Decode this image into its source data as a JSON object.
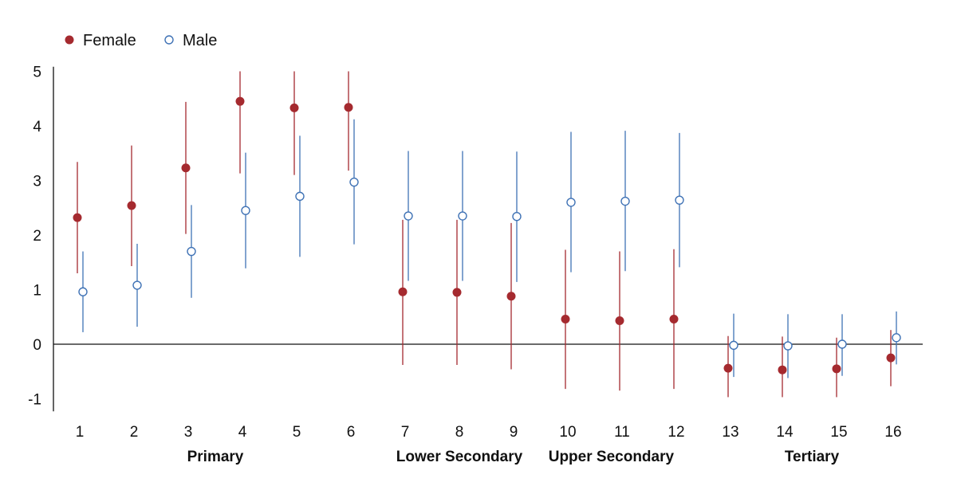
{
  "colors": {
    "female": "#a52a2f",
    "male": "#3f72b5"
  },
  "chart_data": {
    "type": "scatter",
    "subtype": "point-with-error-bars",
    "x": [
      1,
      2,
      3,
      4,
      5,
      6,
      7,
      8,
      9,
      10,
      11,
      12,
      13,
      14,
      15,
      16
    ],
    "x_tick_labels": [
      "1",
      "2",
      "3",
      "4",
      "5",
      "6",
      "7",
      "8",
      "9",
      "10",
      "11",
      "12",
      "13",
      "14",
      "15",
      "16"
    ],
    "y_tick_labels": [
      "-1",
      "0",
      "1",
      "2",
      "3",
      "4",
      "5"
    ],
    "ylim": [
      -1.2,
      5.2
    ],
    "grid": false,
    "legend": "top-left",
    "group_labels": [
      {
        "label": "Primary",
        "center": 3.5
      },
      {
        "label": "Lower Secondary",
        "center": 8
      },
      {
        "label": "Upper Secondary",
        "center": 10.8
      },
      {
        "label": "Tertiary",
        "center": 14.5
      }
    ],
    "series": [
      {
        "name": "Female",
        "marker": "filled-circle",
        "values": [
          2.32,
          2.54,
          3.23,
          4.45,
          4.33,
          4.34,
          0.96,
          0.95,
          0.88,
          0.46,
          0.43,
          0.46,
          -0.44,
          -0.47,
          -0.45,
          -0.25
        ],
        "lower": [
          1.3,
          1.43,
          2.02,
          3.13,
          3.1,
          3.18,
          -0.38,
          -0.38,
          -0.46,
          -0.82,
          -0.85,
          -0.82,
          -0.97,
          -0.97,
          -0.97,
          -0.77
        ],
        "upper": [
          3.34,
          3.64,
          4.44,
          5.0,
          5.0,
          5.0,
          2.28,
          2.28,
          2.22,
          1.73,
          1.7,
          1.74,
          0.15,
          0.14,
          0.12,
          0.26
        ]
      },
      {
        "name": "Male",
        "marker": "open-circle",
        "values": [
          0.96,
          1.08,
          1.7,
          2.45,
          2.71,
          2.97,
          2.35,
          2.35,
          2.34,
          2.6,
          2.62,
          2.64,
          -0.02,
          -0.03,
          0.0,
          0.12
        ],
        "lower": [
          0.22,
          0.32,
          0.85,
          1.39,
          1.6,
          1.83,
          1.16,
          1.16,
          1.14,
          1.32,
          1.34,
          1.41,
          -0.6,
          -0.62,
          -0.58,
          -0.37
        ],
        "upper": [
          1.7,
          1.84,
          2.55,
          3.51,
          3.82,
          4.12,
          3.54,
          3.54,
          3.53,
          3.89,
          3.91,
          3.87,
          0.56,
          0.55,
          0.55,
          0.6
        ]
      }
    ]
  }
}
